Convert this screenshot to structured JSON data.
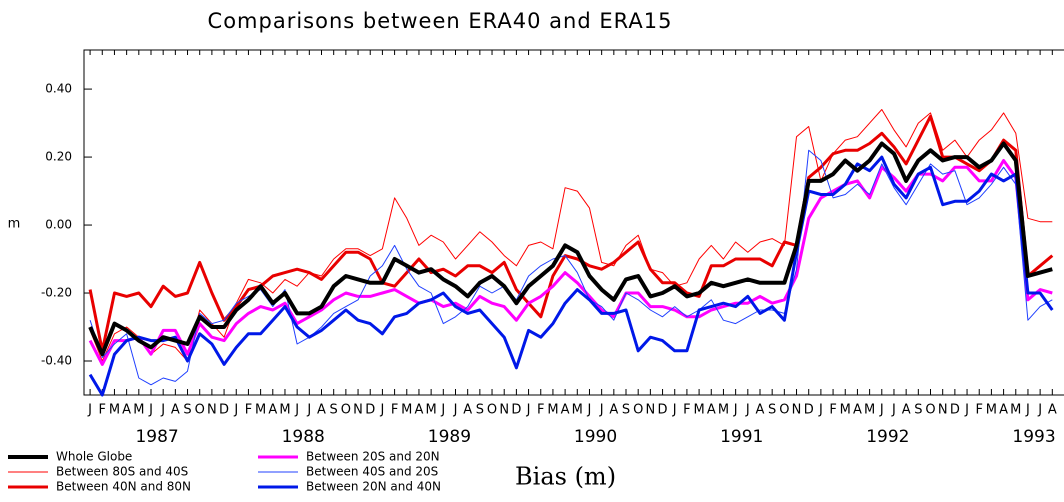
{
  "chart_data": {
    "type": "line",
    "title": "Comparisons between ERA40 and ERA15",
    "ylabel": "m",
    "annotation": "Bias (m)",
    "categories": [
      "J",
      "F",
      "M",
      "A",
      "M",
      "J",
      "J",
      "A",
      "S",
      "O",
      "N",
      "D",
      "J",
      "F",
      "M",
      "A",
      "M",
      "J",
      "J",
      "A",
      "S",
      "O",
      "N",
      "D",
      "J",
      "F",
      "M",
      "A",
      "M",
      "J",
      "J",
      "A",
      "S",
      "O",
      "N",
      "D",
      "J",
      "F",
      "M",
      "A",
      "M",
      "J",
      "J",
      "A",
      "S",
      "O",
      "N",
      "D",
      "J",
      "F",
      "M",
      "A",
      "M",
      "J",
      "J",
      "A",
      "S",
      "O",
      "N",
      "D",
      "J",
      "F",
      "M",
      "A",
      "M",
      "J",
      "J",
      "A",
      "S",
      "O",
      "N",
      "D",
      "J",
      "F",
      "M",
      "A",
      "M",
      "J",
      "J",
      "A"
    ],
    "years": [
      "1987",
      "1988",
      "1989",
      "1990",
      "1991",
      "1992",
      "1993"
    ],
    "ylim": [
      -0.5,
      0.515
    ],
    "yticks": [
      {
        "value": -0.4,
        "label": "-0.40"
      },
      {
        "value": -0.2,
        "label": "-0.20"
      },
      {
        "value": 0,
        "label": "0.00"
      },
      {
        "value": 0.2,
        "label": "0.20"
      },
      {
        "value": 0.4,
        "label": "0.40"
      }
    ],
    "series": [
      {
        "name": "Whole Globe",
        "color": "#000000",
        "line_width": 4,
        "values": [
          -0.3,
          -0.38,
          -0.29,
          -0.31,
          -0.34,
          -0.36,
          -0.33,
          -0.34,
          -0.35,
          -0.27,
          -0.3,
          -0.3,
          -0.25,
          -0.22,
          -0.18,
          -0.23,
          -0.2,
          -0.26,
          -0.26,
          -0.24,
          -0.18,
          -0.15,
          -0.16,
          -0.17,
          -0.17,
          -0.1,
          -0.12,
          -0.14,
          -0.13,
          -0.16,
          -0.18,
          -0.21,
          -0.17,
          -0.15,
          -0.18,
          -0.23,
          -0.18,
          -0.15,
          -0.12,
          -0.06,
          -0.08,
          -0.15,
          -0.19,
          -0.22,
          -0.16,
          -0.15,
          -0.21,
          -0.2,
          -0.18,
          -0.21,
          -0.2,
          -0.17,
          -0.18,
          -0.17,
          -0.16,
          -0.17,
          -0.17,
          -0.17,
          -0.06,
          0.13,
          0.13,
          0.15,
          0.19,
          0.16,
          0.19,
          0.24,
          0.21,
          0.13,
          0.19,
          0.22,
          0.19,
          0.2,
          0.2,
          0.17,
          0.19,
          0.24,
          0.19,
          -0.15,
          -0.14,
          -0.13
        ]
      },
      {
        "name": "Between 80S and 40S",
        "color": "#ff0000",
        "line_width": 1,
        "values": [
          -0.31,
          -0.4,
          -0.32,
          -0.3,
          -0.33,
          -0.38,
          -0.35,
          -0.36,
          -0.4,
          -0.25,
          -0.29,
          -0.33,
          -0.23,
          -0.16,
          -0.17,
          -0.2,
          -0.16,
          -0.18,
          -0.14,
          -0.15,
          -0.1,
          -0.07,
          -0.07,
          -0.09,
          -0.07,
          0.08,
          0.02,
          -0.06,
          -0.03,
          -0.05,
          -0.1,
          -0.06,
          -0.02,
          -0.05,
          -0.09,
          -0.12,
          -0.06,
          -0.05,
          -0.07,
          0.11,
          0.1,
          0.05,
          -0.11,
          -0.12,
          -0.06,
          -0.03,
          -0.13,
          -0.14,
          -0.18,
          -0.17,
          -0.1,
          -0.06,
          -0.1,
          -0.05,
          -0.08,
          -0.05,
          -0.04,
          -0.06,
          0.26,
          0.29,
          0.13,
          0.21,
          0.25,
          0.26,
          0.3,
          0.34,
          0.28,
          0.23,
          0.3,
          0.33,
          0.22,
          0.25,
          0.2,
          0.25,
          0.28,
          0.33,
          0.27,
          0.02,
          0.01,
          0.01
        ]
      },
      {
        "name": "Between 40N and 80N",
        "color": "#e80000",
        "line_width": 3,
        "values": [
          -0.19,
          -0.37,
          -0.2,
          -0.21,
          -0.2,
          -0.24,
          -0.18,
          -0.21,
          -0.2,
          -0.11,
          -0.2,
          -0.28,
          -0.24,
          -0.19,
          -0.18,
          -0.15,
          -0.14,
          -0.13,
          -0.14,
          -0.16,
          -0.12,
          -0.08,
          -0.08,
          -0.1,
          -0.17,
          -0.18,
          -0.14,
          -0.1,
          -0.14,
          -0.13,
          -0.15,
          -0.12,
          -0.12,
          -0.14,
          -0.11,
          -0.19,
          -0.23,
          -0.27,
          -0.15,
          -0.09,
          -0.1,
          -0.12,
          -0.13,
          -0.11,
          -0.08,
          -0.05,
          -0.13,
          -0.17,
          -0.17,
          -0.2,
          -0.21,
          -0.12,
          -0.12,
          -0.1,
          -0.1,
          -0.1,
          -0.12,
          -0.05,
          -0.06,
          0.14,
          0.17,
          0.21,
          0.22,
          0.22,
          0.24,
          0.27,
          0.23,
          0.18,
          0.25,
          0.32,
          0.2,
          0.2,
          0.18,
          0.16,
          0.19,
          0.25,
          0.22,
          -0.15,
          -0.12,
          -0.09
        ]
      },
      {
        "name": "Between 20S and 20N",
        "color": "#ff00ff",
        "line_width": 3,
        "values": [
          -0.34,
          -0.41,
          -0.34,
          -0.34,
          -0.33,
          -0.38,
          -0.31,
          -0.31,
          -0.38,
          -0.29,
          -0.33,
          -0.34,
          -0.29,
          -0.26,
          -0.24,
          -0.25,
          -0.23,
          -0.29,
          -0.27,
          -0.25,
          -0.22,
          -0.2,
          -0.21,
          -0.21,
          -0.2,
          -0.19,
          -0.21,
          -0.23,
          -0.22,
          -0.24,
          -0.23,
          -0.25,
          -0.21,
          -0.23,
          -0.24,
          -0.28,
          -0.23,
          -0.21,
          -0.18,
          -0.14,
          -0.17,
          -0.21,
          -0.25,
          -0.27,
          -0.2,
          -0.2,
          -0.24,
          -0.24,
          -0.25,
          -0.27,
          -0.27,
          -0.25,
          -0.24,
          -0.23,
          -0.23,
          -0.21,
          -0.23,
          -0.22,
          -0.15,
          0.02,
          0.08,
          0.1,
          0.12,
          0.13,
          0.08,
          0.17,
          0.14,
          0.1,
          0.15,
          0.15,
          0.13,
          0.17,
          0.17,
          0.13,
          0.13,
          0.19,
          0.14,
          -0.22,
          -0.19,
          -0.2
        ]
      },
      {
        "name": "Between 40S and 20S",
        "color": "#2040ff",
        "line_width": 1,
        "values": [
          -0.28,
          -0.39,
          -0.35,
          -0.32,
          -0.45,
          -0.47,
          -0.45,
          -0.46,
          -0.43,
          -0.26,
          -0.29,
          -0.28,
          -0.23,
          -0.21,
          -0.19,
          -0.24,
          -0.19,
          -0.35,
          -0.33,
          -0.3,
          -0.26,
          -0.24,
          -0.22,
          -0.15,
          -0.12,
          -0.06,
          -0.13,
          -0.18,
          -0.2,
          -0.29,
          -0.27,
          -0.24,
          -0.18,
          -0.2,
          -0.18,
          -0.22,
          -0.15,
          -0.12,
          -0.1,
          -0.09,
          -0.14,
          -0.22,
          -0.24,
          -0.28,
          -0.2,
          -0.22,
          -0.25,
          -0.27,
          -0.24,
          -0.27,
          -0.25,
          -0.22,
          -0.28,
          -0.29,
          -0.27,
          -0.25,
          -0.25,
          -0.26,
          -0.13,
          0.22,
          0.19,
          0.08,
          0.09,
          0.12,
          0.09,
          0.18,
          0.11,
          0.06,
          0.12,
          0.18,
          0.15,
          0.16,
          0.06,
          0.08,
          0.12,
          0.17,
          0.12,
          -0.28,
          -0.24,
          -0.22
        ]
      },
      {
        "name": "Between 20N and 40N",
        "color": "#0018e8",
        "line_width": 3,
        "values": [
          -0.44,
          -0.5,
          -0.38,
          -0.34,
          -0.33,
          -0.34,
          -0.34,
          -0.33,
          -0.4,
          -0.32,
          -0.35,
          -0.41,
          -0.36,
          -0.32,
          -0.32,
          -0.28,
          -0.24,
          -0.3,
          -0.33,
          -0.31,
          -0.28,
          -0.25,
          -0.28,
          -0.29,
          -0.32,
          -0.27,
          -0.26,
          -0.23,
          -0.22,
          -0.2,
          -0.24,
          -0.26,
          -0.25,
          -0.29,
          -0.33,
          -0.42,
          -0.31,
          -0.33,
          -0.29,
          -0.23,
          -0.19,
          -0.22,
          -0.26,
          -0.26,
          -0.25,
          -0.37,
          -0.33,
          -0.34,
          -0.37,
          -0.37,
          -0.25,
          -0.24,
          -0.23,
          -0.24,
          -0.21,
          -0.26,
          -0.24,
          -0.28,
          -0.08,
          0.1,
          0.09,
          0.09,
          0.12,
          0.18,
          0.16,
          0.2,
          0.12,
          0.08,
          0.15,
          0.17,
          0.06,
          0.07,
          0.07,
          0.1,
          0.15,
          0.13,
          0.15,
          -0.2,
          -0.2,
          -0.25
        ]
      }
    ]
  }
}
